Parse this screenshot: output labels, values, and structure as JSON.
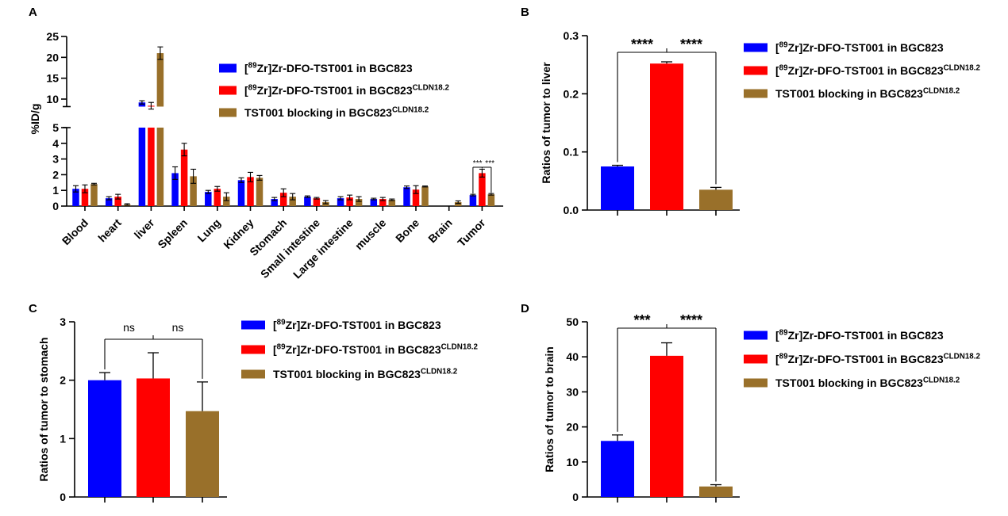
{
  "colors": {
    "series": [
      "#0000ff",
      "#ff0000",
      "#99702a"
    ],
    "axis": "#000000"
  },
  "legend": {
    "entries": [
      {
        "pre": "[",
        "sup": "89",
        "main": "Zr]Zr-DFO-TST001 in BGC823",
        "tail_sup": ""
      },
      {
        "pre": "[",
        "sup": "89",
        "main": "Zr]Zr-DFO-TST001 in BGC823",
        "tail_sup": "CLDN18.2"
      },
      {
        "pre": "",
        "sup": "",
        "main": "TST001 blocking in BGC823",
        "tail_sup": "CLDN18.2"
      }
    ]
  },
  "chart_data": [
    {
      "panel": "A",
      "type": "bar",
      "title": "",
      "xlabel": "",
      "ylabel": "%ID/g",
      "broken_axis": true,
      "ylim_lower": [
        0,
        5
      ],
      "ylim_upper": [
        8,
        25
      ],
      "yticks_lower": [
        "0",
        "1",
        "2",
        "3",
        "4",
        "5"
      ],
      "yticks_upper": [
        "10",
        "15",
        "20",
        "25"
      ],
      "categories": [
        "Blood",
        "heart",
        "liver",
        "Spleen",
        "Lung",
        "Kidney",
        "Stomach",
        "Small intestine",
        "Large intestine",
        "muscle",
        "Bone",
        "Brain",
        "Tumor"
      ],
      "series": [
        {
          "name": "[89Zr]Zr-DFO-TST001 in BGC823",
          "values": [
            1.1,
            0.5,
            9.2,
            2.1,
            0.9,
            1.65,
            0.45,
            0.6,
            0.5,
            0.45,
            1.2,
            0.0,
            0.7
          ],
          "errors": [
            0.2,
            0.1,
            0.4,
            0.4,
            0.1,
            0.15,
            0.1,
            0.05,
            0.1,
            0.05,
            0.08,
            0.0,
            0.05
          ]
        },
        {
          "name": "[89Zr]Zr-DFO-TST001 in BGC823CLDN18.2",
          "values": [
            1.1,
            0.6,
            8.4,
            3.6,
            1.1,
            1.85,
            0.85,
            0.5,
            0.55,
            0.45,
            1.05,
            0.0,
            2.1
          ],
          "errors": [
            0.25,
            0.15,
            0.8,
            0.4,
            0.15,
            0.3,
            0.25,
            0.05,
            0.15,
            0.1,
            0.25,
            0.0,
            0.25
          ]
        },
        {
          "name": "TST001 blocking in BGC823CLDN18.2",
          "values": [
            1.4,
            0.1,
            21.0,
            1.9,
            0.6,
            1.8,
            0.6,
            0.25,
            0.45,
            0.4,
            1.25,
            0.25,
            0.75
          ],
          "errors": [
            0.05,
            0.05,
            1.5,
            0.45,
            0.25,
            0.15,
            0.2,
            0.1,
            0.15,
            0.05,
            0.03,
            0.08,
            0.05
          ]
        }
      ],
      "annotations": [
        "***",
        "***"
      ]
    },
    {
      "panel": "B",
      "type": "bar",
      "title": "",
      "xlabel": "",
      "ylabel": "Ratios of tumor to liver",
      "ylim": [
        0,
        0.3
      ],
      "yticks": [
        "0.0",
        "0.1",
        "0.2",
        "0.3"
      ],
      "series": [
        {
          "name": "[89Zr]Zr-DFO-TST001 in BGC823",
          "values": [
            0.075
          ],
          "errors": [
            0.002
          ]
        },
        {
          "name": "[89Zr]Zr-DFO-TST001 in BGC823CLDN18.2",
          "values": [
            0.252
          ],
          "errors": [
            0.003
          ]
        },
        {
          "name": "TST001 blocking in BGC823CLDN18.2",
          "values": [
            0.035
          ],
          "errors": [
            0.004
          ]
        }
      ],
      "annotations": [
        "****",
        "****"
      ]
    },
    {
      "panel": "C",
      "type": "bar",
      "title": "",
      "xlabel": "",
      "ylabel": "Ratios of tumor to stomach",
      "ylim": [
        0,
        3
      ],
      "yticks": [
        "0",
        "1",
        "2",
        "3"
      ],
      "series": [
        {
          "name": "[89Zr]Zr-DFO-TST001 in BGC823",
          "values": [
            2.0
          ],
          "errors": [
            0.13
          ]
        },
        {
          "name": "[89Zr]Zr-DFO-TST001 in BGC823CLDN18.2",
          "values": [
            2.03
          ],
          "errors": [
            0.44
          ]
        },
        {
          "name": "TST001 blocking in BGC823CLDN18.2",
          "values": [
            1.47
          ],
          "errors": [
            0.5
          ]
        }
      ],
      "annotations": [
        "ns",
        "ns"
      ]
    },
    {
      "panel": "D",
      "type": "bar",
      "title": "",
      "xlabel": "",
      "ylabel": "Ratios of tumor to brain",
      "ylim": [
        0,
        50
      ],
      "yticks": [
        "0",
        "10",
        "20",
        "30",
        "40",
        "50"
      ],
      "series": [
        {
          "name": "[89Zr]Zr-DFO-TST001 in BGC823",
          "values": [
            16.0
          ],
          "errors": [
            1.7
          ]
        },
        {
          "name": "[89Zr]Zr-DFO-TST001 in BGC823CLDN18.2",
          "values": [
            40.3
          ],
          "errors": [
            3.7
          ]
        },
        {
          "name": "TST001 blocking in BGC823CLDN18.2",
          "values": [
            3.0
          ],
          "errors": [
            0.5
          ]
        }
      ],
      "annotations": [
        "***",
        "****"
      ]
    }
  ]
}
